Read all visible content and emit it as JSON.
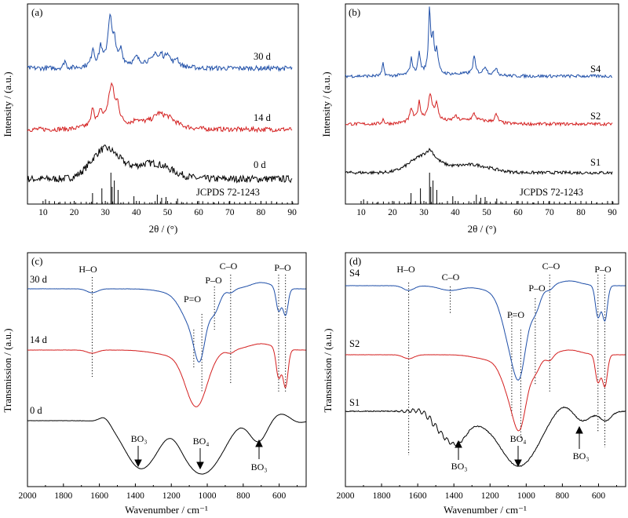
{
  "figure": {
    "panels": [
      {
        "id": "a",
        "label": "(a)",
        "xlabel": "2θ / (°)",
        "ylabel": "Intensity / (a.u.)",
        "reference_label": "JCPDS 72-1243",
        "xticks": [
          "10",
          "20",
          "30",
          "40",
          "50",
          "60",
          "70",
          "80",
          "90"
        ]
      },
      {
        "id": "b",
        "label": "(b)",
        "xlabel": "2θ / (°)",
        "ylabel": "Intensity / (a.u.)",
        "reference_label": "JCPDS 72-1243",
        "xticks": [
          "10",
          "20",
          "30",
          "40",
          "50",
          "60",
          "70",
          "80",
          "90"
        ]
      },
      {
        "id": "c",
        "label": "(c)",
        "xlabel": "Wavenumber / cm⁻¹",
        "ylabel": "Transmission / (a.u.)",
        "xticks": [
          "2000",
          "1800",
          "1600",
          "1400",
          "1200",
          "1000",
          "800",
          "600"
        ],
        "annotations": [
          "H–O",
          "P–O",
          "C–O",
          "P–O",
          "P=O",
          "BO₃",
          "BO₄",
          "BO₃"
        ]
      },
      {
        "id": "d",
        "label": "(d)",
        "xlabel": "Wavenumber / cm⁻¹",
        "ylabel": "Transmission / (a.u.)",
        "xticks": [
          "2000",
          "1800",
          "1600",
          "1400",
          "1200",
          "1000",
          "800",
          "600"
        ],
        "annotations": [
          "H–O",
          "C–O",
          "C–O",
          "P–O",
          "P–O",
          "P=O",
          "BO₃",
          "BO₄",
          "BO₃"
        ]
      }
    ]
  },
  "chart_data": [
    {
      "type": "line",
      "panel": "(a)",
      "title": "",
      "xlabel": "2θ / (°)",
      "ylabel": "Intensity / (a.u.)",
      "xlim": [
        5,
        92
      ],
      "y_axis_ticks": "none (arbitrary units, offset traces)",
      "series": [
        {
          "name": "0 d",
          "color": "#000000",
          "peaks_2theta": [
            30,
            45
          ],
          "description_broad": true
        },
        {
          "name": "14 d",
          "color": "#d42020",
          "peaks_2theta": [
            26,
            28.5,
            32,
            34,
            40,
            47,
            50
          ]
        },
        {
          "name": "30 d",
          "color": "#1f4fa8",
          "peaks_2theta": [
            17,
            26,
            28.5,
            31.5,
            33,
            35,
            40,
            46,
            48,
            50,
            53
          ]
        }
      ],
      "reference": {
        "name": "JCPDS 72-1243",
        "lines_2theta": [
          10.8,
          25.9,
          28.9,
          31.8,
          32.2,
          32.9,
          34.1,
          39.2,
          46.7,
          48.1,
          49.5,
          53.2
        ]
      }
    },
    {
      "type": "line",
      "panel": "(b)",
      "title": "",
      "xlabel": "2θ / (°)",
      "ylabel": "Intensity / (a.u.)",
      "xlim": [
        5,
        92
      ],
      "series": [
        {
          "name": "S1",
          "color": "#000000",
          "peaks_2theta": [
            32
          ]
        },
        {
          "name": "S2",
          "color": "#d42020",
          "peaks_2theta": [
            26,
            28.5,
            32,
            34,
            40,
            46,
            53
          ]
        },
        {
          "name": "S4",
          "color": "#1f4fa8",
          "peaks_2theta": [
            17,
            26,
            28.5,
            31.8,
            32.9,
            34.1,
            46,
            49.5,
            53
          ]
        }
      ],
      "reference": {
        "name": "JCPDS 72-1243",
        "lines_2theta": [
          10.8,
          25.9,
          28.9,
          31.8,
          32.2,
          32.9,
          34.1,
          39.2,
          46.7,
          48.1,
          49.5,
          53.2
        ]
      }
    },
    {
      "type": "line",
      "panel": "(c)",
      "title": "",
      "xlabel": "Wavenumber / cm⁻¹",
      "ylabel": "Transmission / (a.u.)",
      "xlim": [
        2000,
        450
      ],
      "series": [
        {
          "name": "30 d",
          "color": "#1f4fa8",
          "bands_cm-1": [
            1640,
            1080,
            1040,
            960,
            870,
            603,
            565
          ]
        },
        {
          "name": "14 d",
          "color": "#d42020",
          "bands_cm-1": [
            1640,
            1030,
            870,
            603,
            565
          ]
        },
        {
          "name": "0 d",
          "color": "#000000",
          "bands_cm-1": [
            1370,
            1030,
            715
          ]
        }
      ],
      "annotations": [
        {
          "text": "H–O",
          "x": 1640
        },
        {
          "text": "P=O",
          "x": 1050
        },
        {
          "text": "P–O",
          "x": 960
        },
        {
          "text": "C–O",
          "x": 870
        },
        {
          "text": "P–O",
          "x": 580
        },
        {
          "text": "BO₃",
          "x": 1370
        },
        {
          "text": "BO₄",
          "x": 1030
        },
        {
          "text": "BO₃",
          "x": 715
        }
      ]
    },
    {
      "type": "line",
      "panel": "(d)",
      "title": "",
      "xlabel": "Wavenumber / cm⁻¹",
      "ylabel": "Transmission / (a.u.)",
      "xlim": [
        2000,
        450
      ],
      "series": [
        {
          "name": "S4",
          "color": "#1f4fa8",
          "bands_cm-1": [
            1650,
            1420,
            1080,
            1030,
            950,
            870,
            603,
            565
          ]
        },
        {
          "name": "S2",
          "color": "#d42020",
          "bands_cm-1": [
            1650,
            1060,
            1030,
            950,
            870,
            603,
            565
          ]
        },
        {
          "name": "S1",
          "color": "#000000",
          "bands_cm-1": [
            1390,
            1040,
            700
          ]
        }
      ],
      "annotations": [
        {
          "text": "H–O",
          "x": 1650
        },
        {
          "text": "C–O",
          "x": 1420
        },
        {
          "text": "P=O",
          "x": 1050
        },
        {
          "text": "P–O",
          "x": 950
        },
        {
          "text": "C–O",
          "x": 870
        },
        {
          "text": "P–O",
          "x": 580
        },
        {
          "text": "BO₃",
          "x": 1390
        },
        {
          "text": "BO₄",
          "x": 1040
        },
        {
          "text": "BO₃",
          "x": 700
        }
      ]
    }
  ]
}
